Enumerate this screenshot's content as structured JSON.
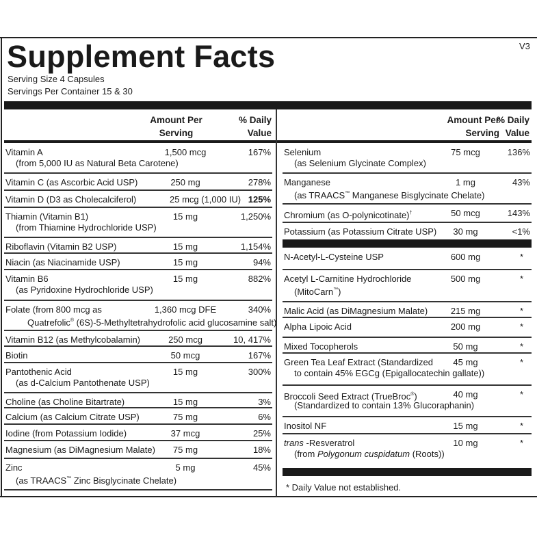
{
  "title": "Supplement Facts",
  "version": "V3",
  "serving_size": "Serving Size  4 Capsules",
  "servings_per_container": "Servings Per Container  15 & 30",
  "headers": {
    "amount": "Amount Per Serving",
    "dv": "% Daily Value"
  },
  "left_rows": [
    {
      "name": "Vitamin A",
      "sub": "(from 5,000 IU as Natural Beta Carotene)",
      "amount": "1,500 mcg",
      "dv": "167%"
    },
    {
      "name": "Vitamin C (as Ascorbic Acid USP)",
      "amount": "250 mg",
      "dv": "278%"
    },
    {
      "name": "Vitamin D (D3 as Cholecalciferol)",
      "amount": "25 mcg (1,000 IU)",
      "dv": "125%",
      "dv_bold": true
    },
    {
      "name": "Thiamin (Vitamin B1)",
      "sub": "(from Thiamine Hydrochloride USP)",
      "amount": "15 mg",
      "dv": "1,250%"
    },
    {
      "name": "Riboflavin (Vitamin B2 USP)",
      "amount": "15 mg",
      "dv": "1,154%"
    },
    {
      "name": "Niacin (as Niacinamide USP)",
      "amount": "15 mg",
      "dv": "94%"
    },
    {
      "name": "Vitamin B6",
      "sub": "(as Pyridoxine Hydrochloride USP)",
      "amount": "15 mg",
      "dv": "882%"
    },
    {
      "name": "Folate (from 800 mcg as",
      "sub": "Quatrefolic® (6S)-5-Methyltetrahydrofolic acid glucosamine salt)",
      "amount": "1,360 mcg DFE",
      "dv": "340%"
    },
    {
      "name": "Vitamin B12 (as Methylcobalamin)",
      "amount": "250 mcg",
      "dv": "10, 417%"
    },
    {
      "name": "Biotin",
      "amount": "50 mcg",
      "dv": "167%"
    },
    {
      "name": "Pantothenic Acid",
      "sub": "(as d-Calcium Pantothenate USP)",
      "amount": "15 mg",
      "dv": "300%"
    },
    {
      "name": "Choline (as Choline Bitartrate)",
      "amount": "15 mg",
      "dv": "3%"
    },
    {
      "name": "Calcium (as Calcium Citrate USP)",
      "amount": "75 mg",
      "dv": "6%"
    },
    {
      "name": "Iodine (from Potassium Iodide)",
      "amount": "37 mcg",
      "dv": "25%"
    },
    {
      "name": "Magnesium (as DiMagnesium Malate)",
      "amount": "75 mg",
      "dv": "18%"
    },
    {
      "name": "Zinc",
      "sub": "(as TRAACS™ Zinc Bisglycinate Chelate)",
      "amount": "5 mg",
      "dv": "45%"
    }
  ],
  "right_rows_top": [
    {
      "name": "Selenium",
      "sub": "(as Selenium Glycinate Complex)",
      "amount": "75 mcg",
      "dv": "136%"
    },
    {
      "name": "Manganese",
      "sub": "(as TRAACS™ Manganese Bisglycinate Chelate)",
      "amount": "1 mg",
      "dv": "43%"
    },
    {
      "name": "Chromium (as O-polynicotinate)†",
      "amount": "50 mcg",
      "dv": "143%"
    },
    {
      "name": "Potassium (as Potassium Citrate USP)",
      "amount": "30 mg",
      "dv": "<1%"
    }
  ],
  "right_rows_bottom": [
    {
      "name": "N-Acetyl-L-Cysteine USP",
      "amount": "600 mg",
      "dv": "*"
    },
    {
      "name": "Acetyl L-Carnitine Hydrochloride",
      "sub": "(MitoCarn™)",
      "amount": "500 mg",
      "dv": "*"
    },
    {
      "name": "Malic Acid (as DiMagnesium Malate)",
      "amount": "215 mg",
      "dv": "*"
    },
    {
      "name": "Alpha Lipoic Acid",
      "amount": "200 mg",
      "dv": "*"
    },
    {
      "name": "Mixed Tocopherols",
      "amount": "50 mg",
      "dv": "*"
    },
    {
      "name": "Green Tea Leaf Extract (Standardized",
      "sub": "to contain 45% EGCg (Epigallocatechin gallate))",
      "amount": "45 mg",
      "dv": "*"
    },
    {
      "name": "Broccoli Seed Extract (TrueBroc®)",
      "sub": "(Standardized to contain 13% Glucoraphanin)",
      "amount": "40 mg",
      "dv": "*"
    },
    {
      "name": "Inositol NF",
      "amount": "15 mg",
      "dv": "*"
    },
    {
      "name": "trans -Resveratrol",
      "sub": "(from Polygonum cuspidatum (Roots))",
      "amount": "10 mg",
      "dv": "*",
      "italic_terms": [
        "trans",
        "Polygonum cuspidatum"
      ]
    }
  ],
  "footnote": "*  Daily Value not established."
}
